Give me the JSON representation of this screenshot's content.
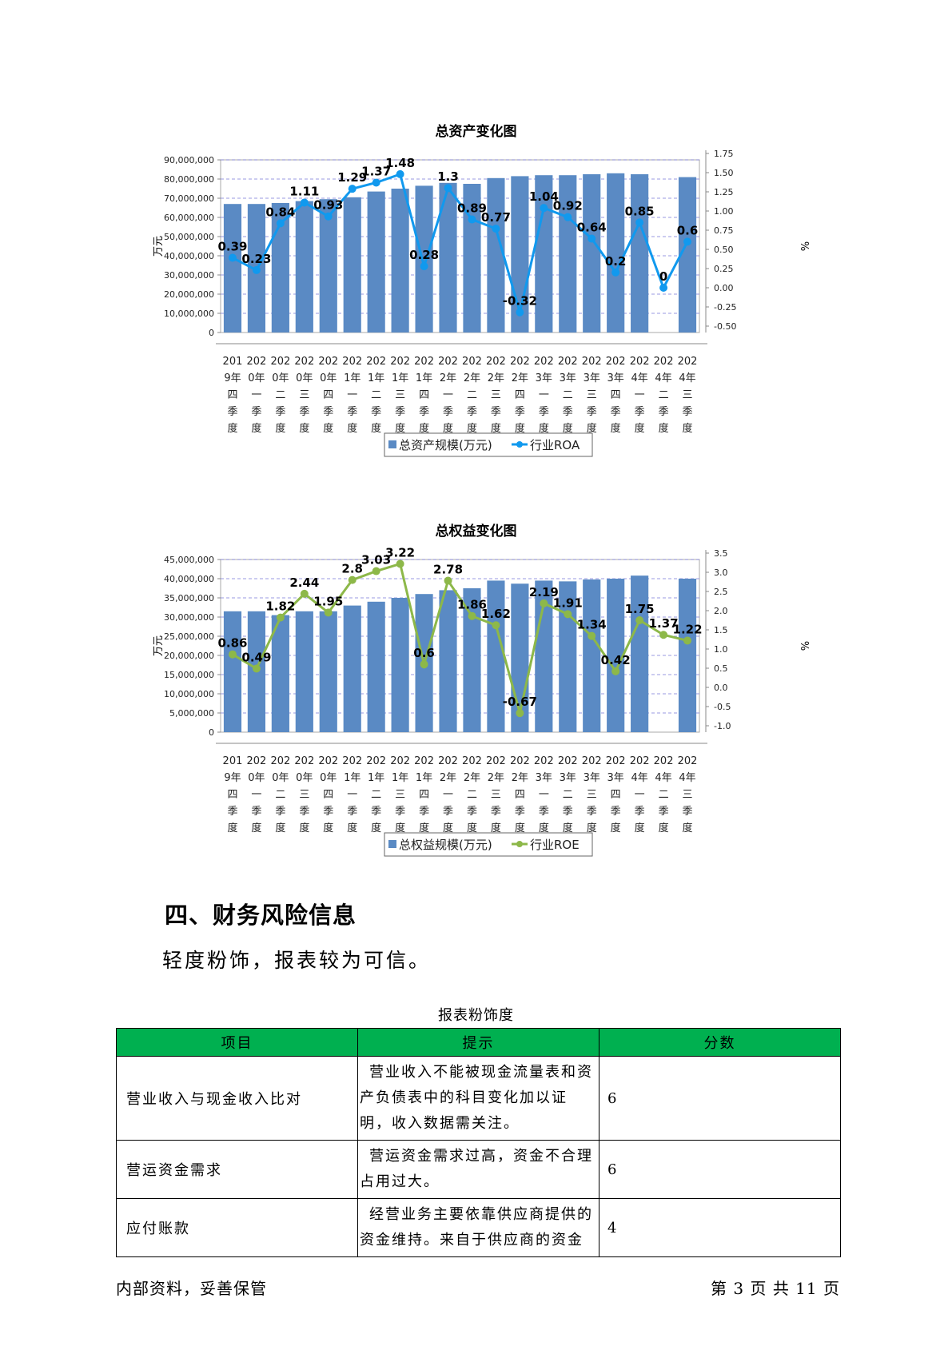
{
  "chart_data": [
    {
      "type": "bar",
      "title": "总资产变化图",
      "ylabel": "万元",
      "y2label": "%",
      "categories": [
        "2019年四季度",
        "2020年一季度",
        "2020年二季度",
        "2020年三季度",
        "2020年四季度",
        "2021年一季度",
        "2021年二季度",
        "2021年三季度",
        "2021年四季度",
        "2022年一季度",
        "2022年二季度",
        "2022年三季度",
        "2022年四季度",
        "2023年一季度",
        "2023年二季度",
        "2023年三季度",
        "2023年四季度",
        "2024年一季度",
        "2024年二季度",
        "2024年三季度"
      ],
      "ylim": [
        0,
        90000000
      ],
      "y2lim": [
        -0.5,
        1.75
      ],
      "yticks": [
        "0",
        "10,000,000",
        "20,000,000",
        "30,000,000",
        "40,000,000",
        "50,000,000",
        "60,000,000",
        "70,000,000",
        "80,000,000",
        "90,000,000"
      ],
      "y2ticks": [
        "-0.50",
        "-0.25",
        "0.00",
        "0.25",
        "0.50",
        "0.75",
        "1.00",
        "1.25",
        "1.50",
        "1.75"
      ],
      "grid": true,
      "legend_position": "bottom",
      "bar_color": "#5a8ac4",
      "line_color": "#1199ee",
      "series": [
        {
          "name": "总资产规模(万元)",
          "kind": "bar",
          "values": [
            67000000,
            67000000,
            67500000,
            68500000,
            69500000,
            70500000,
            73500000,
            75000000,
            76500000,
            78000000,
            77500000,
            80500000,
            81500000,
            82000000,
            82000000,
            82500000,
            83000000,
            82500000,
            null,
            81000000
          ]
        },
        {
          "name": "行业ROA",
          "kind": "line",
          "values": [
            0.39,
            0.23,
            0.84,
            1.11,
            0.93,
            1.29,
            1.37,
            1.48,
            0.28,
            1.3,
            0.89,
            0.77,
            -0.32,
            1.04,
            0.92,
            0.64,
            0.2,
            0.85,
            0,
            0.6
          ],
          "labels": [
            "0.39",
            "0.23",
            "0.84",
            "1.11",
            "0.93",
            "1.29",
            "1.37",
            "1.48",
            "0.28",
            "1.3",
            "0.89",
            "0.77",
            "-0.32",
            "1.04",
            "0.92",
            "0.64",
            "0.2",
            "0.85",
            "0",
            "0.6"
          ]
        }
      ]
    },
    {
      "type": "bar",
      "title": "总权益变化图",
      "ylabel": "万元",
      "y2label": "%",
      "categories": [
        "2019年四季度",
        "2020年一季度",
        "2020年二季度",
        "2020年三季度",
        "2020年四季度",
        "2021年一季度",
        "2021年二季度",
        "2021年三季度",
        "2021年四季度",
        "2022年一季度",
        "2022年二季度",
        "2022年三季度",
        "2022年四季度",
        "2023年一季度",
        "2023年二季度",
        "2023年三季度",
        "2023年四季度",
        "2024年一季度",
        "2024年二季度",
        "2024年三季度"
      ],
      "ylim": [
        0,
        45000000
      ],
      "y2lim": [
        -1.0,
        3.5
      ],
      "yticks": [
        "0",
        "5,000,000",
        "10,000,000",
        "15,000,000",
        "20,000,000",
        "25,000,000",
        "30,000,000",
        "35,000,000",
        "40,000,000",
        "45,000,000"
      ],
      "y2ticks": [
        "-1.0",
        "-0.5",
        "0.0",
        "0.5",
        "1.0",
        "1.5",
        "2.0",
        "2.5",
        "3.0",
        "3.5"
      ],
      "grid": true,
      "legend_position": "bottom",
      "bar_color": "#5a8ac4",
      "line_color": "#8db849",
      "series": [
        {
          "name": "总权益规模(万元)",
          "kind": "bar",
          "values": [
            31500000,
            31500000,
            30500000,
            31500000,
            31500000,
            33000000,
            34000000,
            35000000,
            36000000,
            37000000,
            37500000,
            39500000,
            38700000,
            39500000,
            39300000,
            39800000,
            40000000,
            40800000,
            null,
            40000000
          ]
        },
        {
          "name": "行业ROE",
          "kind": "line",
          "values": [
            0.86,
            0.49,
            1.82,
            2.44,
            1.95,
            2.8,
            3.03,
            3.22,
            0.6,
            2.78,
            1.86,
            1.62,
            -0.67,
            2.19,
            1.91,
            1.34,
            0.42,
            1.75,
            1.37,
            1.22
          ],
          "labels": [
            "0.86",
            "0.49",
            "1.82",
            "2.44",
            "1.95",
            "2.8",
            "3.03",
            "3.22",
            "0.6",
            "2.78",
            "1.86",
            "1.62",
            "-0.67",
            "2.19",
            "1.91",
            "1.34",
            "0.42",
            "1.75",
            "1.37",
            "1.22"
          ]
        }
      ]
    }
  ],
  "section": {
    "heading": "四、财务风险信息",
    "summary": "轻度粉饰，报表较为可信。"
  },
  "table": {
    "caption": "报表粉饰度",
    "headers": {
      "item": "项目",
      "tip": "提示",
      "score": "分数"
    },
    "rows": [
      {
        "item": "营业收入与现金收入比对",
        "tip": "营业收入不能被现金流量表和资产负债表中的科目变化加以证明，收入数据需关注。",
        "score": "6"
      },
      {
        "item": "营运资金需求",
        "tip": "营运资金需求过高，资金不合理占用过大。",
        "score": "6"
      },
      {
        "item": "应付账款",
        "tip": "经营业务主要依靠供应商提供的资金维持。来自于供应商的资金占",
        "score": "4"
      }
    ]
  },
  "footer": {
    "left": "内部资料，妥善保管",
    "right": "第 3 页   共 11 页"
  }
}
